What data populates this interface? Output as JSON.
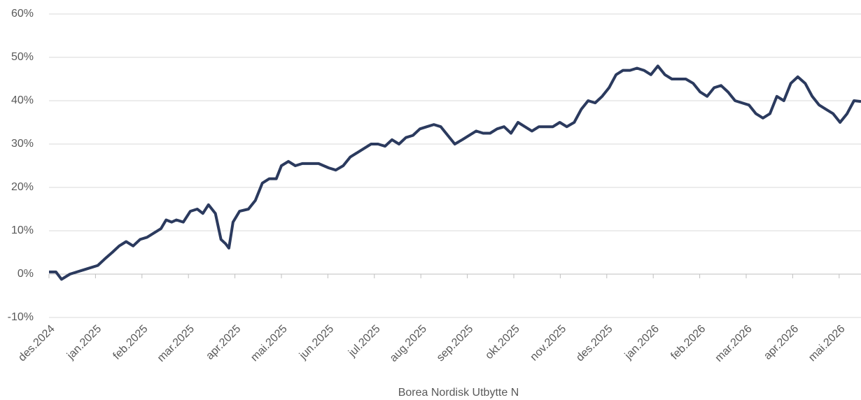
{
  "chart_data": {
    "type": "line",
    "xlabel": "Borea Nordisk Utbytte N",
    "x": [
      0,
      0.15,
      0.27,
      0.45,
      0.6,
      0.75,
      0.9,
      1.05,
      1.2,
      1.36,
      1.51,
      1.66,
      1.81,
      1.96,
      2.11,
      2.26,
      2.41,
      2.52,
      2.64,
      2.74,
      2.89,
      3.04,
      3.19,
      3.31,
      3.43,
      3.58,
      3.7,
      3.8,
      3.87,
      3.96,
      4.1,
      4.29,
      4.44,
      4.59,
      4.74,
      4.89,
      5.0,
      5.15,
      5.3,
      5.45,
      5.6,
      5.8,
      6.02,
      6.17,
      6.33,
      6.48,
      6.63,
      6.78,
      6.93,
      7.08,
      7.23,
      7.38,
      7.53,
      7.68,
      7.83,
      7.98,
      8.13,
      8.28,
      8.43,
      8.58,
      8.73,
      8.89,
      9.04,
      9.19,
      9.34,
      9.49,
      9.64,
      9.79,
      9.94,
      10.09,
      10.24,
      10.39,
      10.54,
      10.69,
      10.84,
      10.99,
      11.14,
      11.3,
      11.45,
      11.6,
      11.75,
      11.9,
      12.05,
      12.2,
      12.35,
      12.5,
      12.65,
      12.8,
      12.95,
      13.1,
      13.25,
      13.4,
      13.55,
      13.7,
      13.86,
      14.01,
      14.16,
      14.31,
      14.46,
      14.61,
      14.76,
      14.91,
      15.06,
      15.21,
      15.36,
      15.51,
      15.66,
      15.81,
      15.96,
      16.11,
      16.27,
      16.42,
      16.57,
      16.72,
      16.87,
      17.02,
      17.17,
      17.32,
      17.47
    ],
    "series": [
      {
        "name": "Borea Nordisk Utbytte N",
        "color": "#2b3a5e",
        "values": [
          0.5,
          0.5,
          -1.2,
          0,
          0.5,
          1,
          1.5,
          2,
          3.5,
          5,
          6.5,
          7.5,
          6.5,
          8,
          8.5,
          9.5,
          10.5,
          12.5,
          12,
          12.5,
          12,
          14.5,
          15,
          14,
          16,
          14,
          8,
          7,
          6,
          12,
          14.5,
          15,
          17,
          21,
          22,
          22,
          25,
          26,
          25,
          25.5,
          25.5,
          25.5,
          24.5,
          24,
          25,
          27,
          28,
          29,
          30,
          30,
          29.5,
          31,
          30,
          31.5,
          32,
          33.5,
          34,
          34.5,
          34,
          32,
          30,
          31,
          32,
          33,
          32.5,
          32.5,
          33.5,
          34,
          32.5,
          35,
          34,
          33,
          34,
          34,
          34,
          35,
          34,
          35,
          38,
          40,
          39.5,
          41,
          43,
          46,
          47,
          47,
          47.5,
          47,
          46,
          48,
          46,
          45,
          45,
          45,
          44,
          42,
          41,
          43,
          43.5,
          42,
          40,
          39.5,
          39,
          37,
          36,
          37,
          41,
          40,
          44,
          45.5,
          44,
          41,
          39,
          38,
          37,
          35,
          37,
          40,
          39.8
        ]
      }
    ],
    "xlim": [
      0,
      17.47
    ],
    "xticks": [
      {
        "value": 0,
        "label": "des.2024"
      },
      {
        "value": 1,
        "label": "jan.2025"
      },
      {
        "value": 2,
        "label": "feb.2025"
      },
      {
        "value": 3,
        "label": "mar.2025"
      },
      {
        "value": 4,
        "label": "apr.2025"
      },
      {
        "value": 5,
        "label": "mai.2025"
      },
      {
        "value": 6,
        "label": "jun.2025"
      },
      {
        "value": 7,
        "label": "jul.2025"
      },
      {
        "value": 8,
        "label": "aug.2025"
      },
      {
        "value": 9,
        "label": "sep.2025"
      },
      {
        "value": 10,
        "label": "okt.2025"
      },
      {
        "value": 11,
        "label": "nov.2025"
      },
      {
        "value": 12,
        "label": "des.2025"
      },
      {
        "value": 13,
        "label": "jan.2026"
      },
      {
        "value": 14,
        "label": "feb.2026"
      },
      {
        "value": 15,
        "label": "mar.2026"
      },
      {
        "value": 16,
        "label": "apr.2026"
      },
      {
        "value": 17,
        "label": "mai.2026"
      }
    ],
    "ylim": [
      -10,
      60
    ],
    "yticks": [
      {
        "value": -10,
        "label": "-10%"
      },
      {
        "value": 0,
        "label": "0%"
      },
      {
        "value": 10,
        "label": "10%"
      },
      {
        "value": 20,
        "label": "20%"
      },
      {
        "value": 30,
        "label": "30%"
      },
      {
        "value": 40,
        "label": "40%"
      },
      {
        "value": 50,
        "label": "50%"
      },
      {
        "value": 60,
        "label": "60%"
      }
    ],
    "grid": true
  }
}
